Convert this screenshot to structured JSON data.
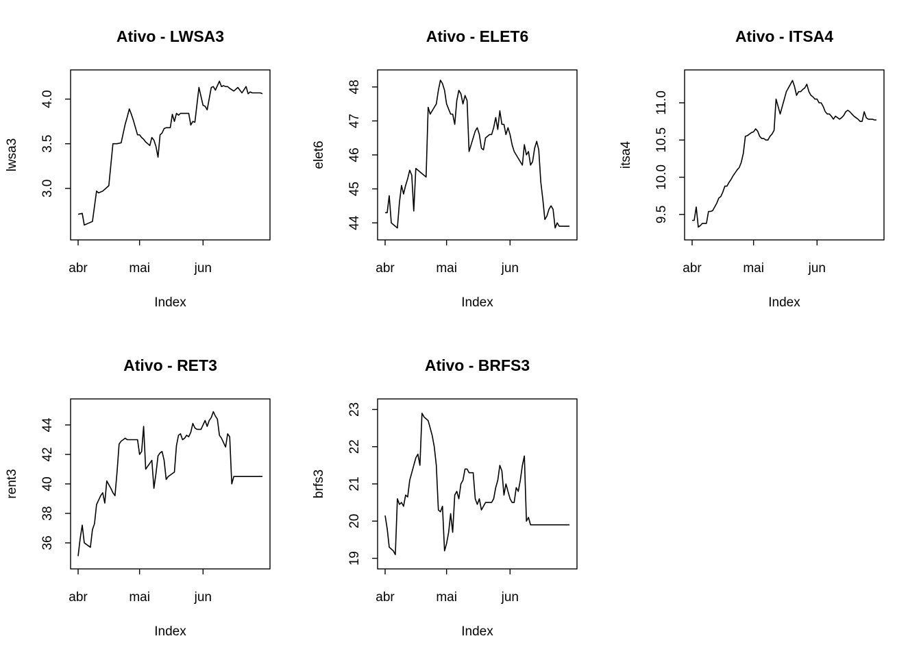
{
  "chart_data": [
    {
      "type": "line",
      "title": "Ativo - LWSA3",
      "xlabel": "Index",
      "ylabel": "lwsa3",
      "xlim": [
        1,
        91
      ],
      "ylim": [
        2.5,
        4.25
      ],
      "x_ticks": [
        {
          "label": "abr",
          "x": 1
        },
        {
          "label": "mai",
          "x": 31
        },
        {
          "label": "jun",
          "x": 62
        }
      ],
      "y_ticks": [
        {
          "label": "3.0",
          "value": 3.0
        },
        {
          "label": "3.5",
          "value": 3.5
        },
        {
          "label": "4.0",
          "value": 4.0
        }
      ],
      "series": [
        {
          "x": [
            1,
            3,
            4,
            6,
            8,
            10,
            11,
            13,
            15,
            16,
            18,
            20,
            22,
            24,
            25,
            26,
            27,
            28,
            29,
            30,
            31,
            32,
            33,
            34,
            35,
            36,
            37,
            38,
            39,
            40,
            41,
            42,
            43,
            44,
            45,
            46,
            47,
            48,
            49,
            50,
            51,
            52,
            53,
            54,
            55,
            56,
            57,
            58,
            60,
            62,
            63,
            64,
            66,
            67,
            68,
            70,
            71,
            72,
            73,
            74,
            75,
            77,
            79,
            81,
            83,
            84,
            85,
            86,
            87,
            88,
            89,
            90,
            91
          ],
          "y": [
            2.71,
            2.72,
            2.59,
            2.61,
            2.63,
            2.97,
            2.95,
            2.97,
            3.01,
            3.03,
            3.5,
            3.5,
            3.51,
            3.72,
            3.8,
            3.89,
            3.83,
            3.76,
            3.68,
            3.6,
            3.6,
            3.57,
            3.55,
            3.52,
            3.5,
            3.48,
            3.57,
            3.54,
            3.47,
            3.35,
            3.6,
            3.62,
            3.67,
            3.68,
            3.68,
            3.68,
            3.83,
            3.75,
            3.84,
            3.82,
            3.84,
            3.84,
            3.84,
            3.84,
            3.84,
            3.71,
            3.75,
            3.74,
            4.13,
            3.93,
            3.92,
            3.88,
            4.13,
            4.14,
            4.1,
            4.2,
            4.14,
            4.15,
            4.14,
            4.14,
            4.12,
            4.09,
            4.13,
            4.07,
            4.14,
            4.06,
            4.08,
            4.07,
            4.07,
            4.07,
            4.07,
            4.07,
            4.06
          ]
        }
      ]
    },
    {
      "type": "line",
      "title": "Ativo - ELET6",
      "xlabel": "Index",
      "ylabel": "elet6",
      "xlim": [
        1,
        91
      ],
      "ylim": [
        43.7,
        48.3
      ],
      "x_ticks": [
        {
          "label": "abr",
          "x": 1
        },
        {
          "label": "mai",
          "x": 31
        },
        {
          "label": "jun",
          "x": 62
        }
      ],
      "y_ticks": [
        {
          "label": "44",
          "value": 44
        },
        {
          "label": "45",
          "value": 45
        },
        {
          "label": "46",
          "value": 46
        },
        {
          "label": "47",
          "value": 47
        },
        {
          "label": "48",
          "value": 48
        }
      ],
      "series": [
        {
          "x": [
            1,
            2,
            3,
            4,
            6,
            7,
            8,
            9,
            10,
            11,
            12,
            13,
            14,
            15,
            16,
            17,
            18,
            19,
            21,
            22,
            23,
            24,
            25,
            26,
            27,
            28,
            29,
            30,
            31,
            33,
            34,
            35,
            36,
            37,
            38,
            39,
            40,
            41,
            42,
            43,
            44,
            45,
            46,
            47,
            48,
            49,
            50,
            52,
            53,
            54,
            55,
            56,
            57,
            58,
            59,
            60,
            61,
            62,
            63,
            64,
            65,
            66,
            67,
            68,
            69,
            70,
            71,
            72,
            73,
            74,
            75,
            76,
            77,
            78,
            79,
            80,
            81,
            82,
            83,
            84,
            85,
            86,
            87,
            88,
            89,
            90,
            91
          ],
          "y": [
            44.3,
            44.3,
            44.8,
            44.0,
            43.9,
            43.85,
            44.6,
            45.1,
            44.85,
            45.1,
            45.3,
            45.55,
            45.4,
            44.35,
            45.6,
            45.55,
            45.5,
            45.45,
            45.35,
            47.4,
            47.2,
            47.3,
            47.4,
            47.5,
            47.9,
            48.2,
            48.1,
            47.9,
            47.5,
            47.2,
            47.2,
            46.9,
            47.6,
            47.9,
            47.8,
            47.5,
            47.75,
            47.6,
            46.1,
            46.3,
            46.5,
            46.7,
            46.8,
            46.6,
            46.2,
            46.15,
            46.5,
            46.6,
            46.6,
            46.8,
            47.1,
            46.75,
            47.3,
            46.9,
            46.9,
            46.6,
            46.8,
            46.6,
            46.3,
            46.1,
            46.0,
            45.9,
            45.8,
            45.7,
            46.3,
            46.0,
            46.1,
            45.7,
            45.8,
            46.2,
            46.4,
            46.15,
            45.2,
            44.7,
            44.1,
            44.2,
            44.4,
            44.5,
            44.4,
            43.85,
            44.0,
            43.9,
            43.9,
            43.9,
            43.9,
            43.9,
            43.9
          ]
        }
      ]
    },
    {
      "type": "line",
      "title": "Ativo - ITSA4",
      "xlabel": "Index",
      "ylabel": "itsa4",
      "xlim": [
        1,
        91
      ],
      "ylim": [
        9.25,
        11.35
      ],
      "x_ticks": [
        {
          "label": "abr",
          "x": 1
        },
        {
          "label": "mai",
          "x": 31
        },
        {
          "label": "jun",
          "x": 62
        }
      ],
      "y_ticks": [
        {
          "label": "9.5",
          "value": 9.5
        },
        {
          "label": "10.0",
          "value": 10.0
        },
        {
          "label": "10.5",
          "value": 10.5
        },
        {
          "label": "11.0",
          "value": 11.0
        }
      ],
      "series": [
        {
          "x": [
            1,
            2,
            3,
            4,
            5,
            6,
            7,
            8,
            9,
            10,
            11,
            12,
            13,
            14,
            15,
            16,
            17,
            18,
            19,
            20,
            21,
            22,
            23,
            24,
            25,
            26,
            27,
            28,
            29,
            30,
            31,
            32,
            33,
            34,
            35,
            36,
            37,
            38,
            39,
            40,
            41,
            42,
            43,
            44,
            45,
            46,
            47,
            48,
            49,
            50,
            51,
            52,
            53,
            54,
            55,
            56,
            57,
            58,
            59,
            60,
            61,
            62,
            63,
            64,
            65,
            66,
            67,
            68,
            69,
            70,
            71,
            72,
            73,
            74,
            75,
            76,
            77,
            78,
            79,
            80,
            81,
            82,
            83,
            84,
            85,
            86,
            87,
            88,
            89,
            90,
            91
          ],
          "y": [
            9.42,
            9.42,
            9.6,
            9.33,
            9.35,
            9.38,
            9.38,
            9.38,
            9.54,
            9.54,
            9.55,
            9.6,
            9.65,
            9.72,
            9.74,
            9.8,
            9.88,
            9.88,
            9.93,
            9.97,
            10.02,
            10.06,
            10.1,
            10.13,
            10.2,
            10.32,
            10.55,
            10.56,
            10.58,
            10.6,
            10.61,
            10.65,
            10.62,
            10.55,
            10.52,
            10.52,
            10.5,
            10.5,
            10.55,
            10.58,
            10.63,
            11.05,
            10.95,
            10.85,
            10.95,
            11.05,
            11.15,
            11.2,
            11.25,
            11.3,
            11.22,
            11.1,
            11.15,
            11.15,
            11.18,
            11.2,
            11.25,
            11.15,
            11.1,
            11.08,
            11.05,
            11.05,
            11.0,
            11.0,
            10.95,
            10.88,
            10.85,
            10.85,
            10.82,
            10.78,
            10.82,
            10.8,
            10.78,
            10.8,
            10.83,
            10.88,
            10.9,
            10.88,
            10.85,
            10.82,
            10.8,
            10.78,
            10.75,
            10.75,
            10.88,
            10.8,
            10.78,
            10.78,
            10.78,
            10.77,
            10.77
          ]
        }
      ]
    },
    {
      "type": "line",
      "title": "Ativo - RET3",
      "xlabel": "Index",
      "ylabel": "rent3",
      "xlim": [
        1,
        91
      ],
      "ylim": [
        34.7,
        45.3
      ],
      "x_ticks": [
        {
          "label": "abr",
          "x": 1
        },
        {
          "label": "mai",
          "x": 31
        },
        {
          "label": "jun",
          "x": 62
        }
      ],
      "y_ticks": [
        {
          "label": "36",
          "value": 36
        },
        {
          "label": "38",
          "value": 38
        },
        {
          "label": "40",
          "value": 40
        },
        {
          "label": "42",
          "value": 42
        },
        {
          "label": "44",
          "value": 44
        }
      ],
      "series": [
        {
          "x": [
            1,
            2,
            3,
            4,
            5,
            6,
            7,
            8,
            9,
            10,
            11,
            12,
            13,
            14,
            15,
            16,
            17,
            18,
            19,
            20,
            21,
            22,
            23,
            24,
            25,
            26,
            27,
            28,
            29,
            30,
            31,
            32,
            33,
            34,
            35,
            36,
            37,
            38,
            39,
            40,
            41,
            42,
            43,
            44,
            45,
            46,
            47,
            48,
            49,
            50,
            51,
            52,
            53,
            54,
            55,
            56,
            57,
            58,
            59,
            60,
            61,
            62,
            63,
            64,
            65,
            66,
            67,
            68,
            69,
            70,
            71,
            72,
            73,
            74,
            75,
            76,
            77,
            78,
            79,
            80,
            81,
            82,
            83,
            84,
            85,
            86,
            87,
            88,
            89,
            90,
            91
          ],
          "y": [
            35.1,
            36.3,
            37.2,
            36.0,
            35.9,
            35.8,
            35.7,
            36.9,
            37.3,
            38.6,
            38.9,
            39.2,
            39.4,
            38.7,
            40.2,
            39.95,
            39.7,
            39.4,
            39.2,
            40.8,
            42.7,
            42.9,
            43.0,
            43.1,
            43.0,
            43.0,
            43.0,
            43.0,
            43.0,
            43.0,
            42.0,
            42.2,
            43.9,
            41.0,
            41.2,
            41.4,
            41.6,
            39.7,
            40.7,
            41.9,
            42.1,
            42.2,
            41.6,
            40.3,
            40.5,
            40.6,
            40.7,
            40.8,
            42.6,
            43.3,
            43.4,
            43.0,
            43.1,
            43.3,
            43.2,
            43.5,
            44.1,
            43.8,
            43.7,
            43.7,
            43.7,
            44.0,
            44.3,
            43.9,
            44.3,
            44.5,
            44.9,
            44.6,
            44.4,
            43.3,
            43.1,
            42.8,
            42.5,
            43.4,
            43.2,
            40.0,
            40.5,
            40.5,
            40.5,
            40.5,
            40.5,
            40.5,
            40.5,
            40.5,
            40.5,
            40.5,
            40.5,
            40.5,
            40.5,
            40.5,
            40.5
          ]
        }
      ]
    },
    {
      "type": "line",
      "title": "Ativo - BRFS3",
      "xlabel": "Index",
      "ylabel": "brfs3",
      "xlim": [
        1,
        91
      ],
      "ylim": [
        18.9,
        23.1
      ],
      "x_ticks": [
        {
          "label": "abr",
          "x": 1
        },
        {
          "label": "mai",
          "x": 31
        },
        {
          "label": "jun",
          "x": 62
        }
      ],
      "y_ticks": [
        {
          "label": "19",
          "value": 19
        },
        {
          "label": "20",
          "value": 20
        },
        {
          "label": "21",
          "value": 21
        },
        {
          "label": "22",
          "value": 22
        },
        {
          "label": "23",
          "value": 23
        }
      ],
      "series": [
        {
          "x": [
            1,
            2,
            3,
            4,
            5,
            6,
            7,
            8,
            9,
            10,
            11,
            12,
            13,
            14,
            15,
            16,
            17,
            18,
            19,
            20,
            21,
            22,
            23,
            24,
            25,
            26,
            27,
            28,
            29,
            30,
            31,
            32,
            33,
            34,
            35,
            36,
            37,
            38,
            39,
            40,
            41,
            42,
            43,
            44,
            45,
            46,
            47,
            48,
            49,
            50,
            51,
            52,
            53,
            54,
            55,
            56,
            57,
            58,
            59,
            60,
            61,
            62,
            63,
            64,
            65,
            66,
            67,
            68,
            69,
            70,
            71,
            72,
            73,
            74,
            75,
            76,
            77,
            78,
            79,
            80,
            81,
            82,
            83,
            84,
            85,
            86,
            87,
            88,
            89,
            90,
            91
          ],
          "y": [
            20.15,
            19.8,
            19.3,
            19.25,
            19.2,
            19.1,
            20.6,
            20.45,
            20.5,
            20.4,
            20.7,
            20.65,
            21.1,
            21.3,
            21.5,
            21.7,
            21.8,
            21.5,
            22.9,
            22.8,
            22.75,
            22.7,
            22.5,
            22.3,
            22.0,
            21.5,
            20.3,
            20.25,
            20.4,
            19.2,
            19.4,
            19.7,
            20.2,
            19.7,
            20.7,
            20.8,
            20.6,
            21.0,
            21.1,
            21.4,
            21.4,
            21.3,
            21.3,
            21.3,
            20.6,
            20.45,
            20.6,
            20.3,
            20.4,
            20.5,
            20.5,
            20.5,
            20.5,
            20.6,
            20.9,
            21.1,
            21.5,
            21.35,
            20.7,
            21.0,
            20.8,
            20.6,
            20.5,
            20.5,
            20.9,
            20.8,
            21.1,
            21.5,
            21.75,
            20.0,
            20.1,
            19.9,
            19.9,
            19.9,
            19.9,
            19.9,
            19.9,
            19.9,
            19.9,
            19.9,
            19.9,
            19.9,
            19.9,
            19.9,
            19.9,
            19.9,
            19.9,
            19.9,
            19.9,
            19.9,
            19.9
          ]
        }
      ]
    }
  ]
}
